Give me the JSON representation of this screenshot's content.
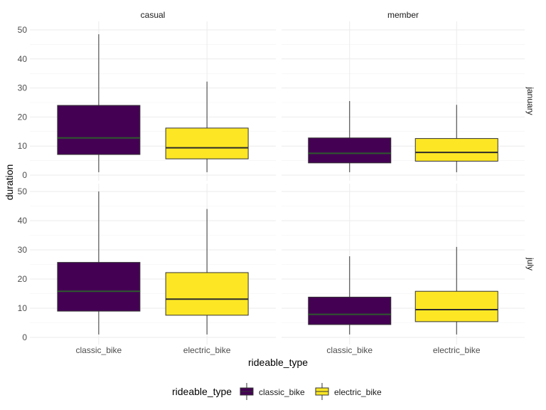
{
  "chart_data": {
    "type": "boxplot",
    "xlabel": "rideable_type",
    "ylabel": "duration",
    "categories": [
      "classic_bike",
      "electric_bike"
    ],
    "ylim": [
      0,
      50
    ],
    "yticks": [
      0,
      10,
      20,
      30,
      40,
      50
    ],
    "grid": true,
    "colors": {
      "classic_bike": "#440154",
      "electric_bike": "#fde725"
    },
    "facet_cols": [
      "casual",
      "member"
    ],
    "facet_rows": [
      "january",
      "july"
    ],
    "panels": [
      {
        "col": "casual",
        "row": "january",
        "boxes": [
          {
            "category": "classic_bike",
            "lower_whisker": 1,
            "q1": 7.1,
            "median": 12.8,
            "q3": 24,
            "upper_whisker": 48.5
          },
          {
            "category": "electric_bike",
            "lower_whisker": 1,
            "q1": 5.6,
            "median": 9.4,
            "q3": 16.2,
            "upper_whisker": 32.2
          }
        ]
      },
      {
        "col": "member",
        "row": "january",
        "boxes": [
          {
            "category": "classic_bike",
            "lower_whisker": 1,
            "q1": 4.2,
            "median": 7.5,
            "q3": 12.8,
            "upper_whisker": 25.5
          },
          {
            "category": "electric_bike",
            "lower_whisker": 1,
            "q1": 4.8,
            "median": 7.8,
            "q3": 12.6,
            "upper_whisker": 24.2
          }
        ]
      },
      {
        "col": "casual",
        "row": "july",
        "boxes": [
          {
            "category": "classic_bike",
            "lower_whisker": 1,
            "q1": 9,
            "median": 15.8,
            "q3": 25.7,
            "upper_whisker": 50
          },
          {
            "category": "electric_bike",
            "lower_whisker": 1,
            "q1": 7.6,
            "median": 13.1,
            "q3": 22.2,
            "upper_whisker": 44
          }
        ]
      },
      {
        "col": "member",
        "row": "july",
        "boxes": [
          {
            "category": "classic_bike",
            "lower_whisker": 1,
            "q1": 4.4,
            "median": 7.9,
            "q3": 13.8,
            "upper_whisker": 27.8
          },
          {
            "category": "electric_bike",
            "lower_whisker": 1,
            "q1": 5.4,
            "median": 9.5,
            "q3": 15.8,
            "upper_whisker": 31
          }
        ]
      }
    ],
    "legend": {
      "title": "rideable_type",
      "position": "bottom",
      "entries": [
        "classic_bike",
        "electric_bike"
      ]
    }
  }
}
